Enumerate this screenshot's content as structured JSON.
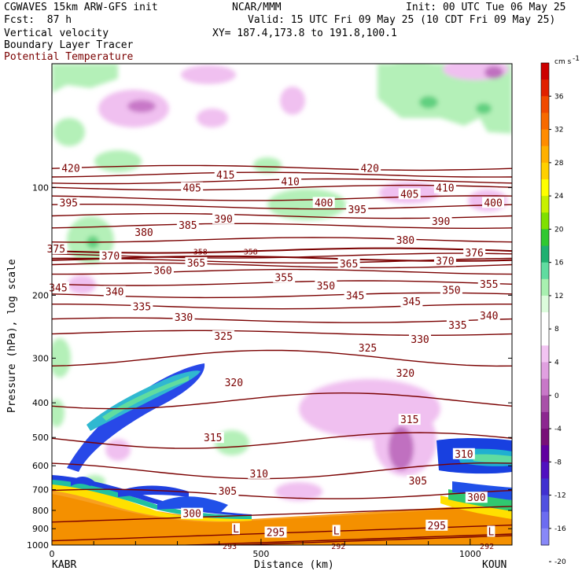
{
  "header": {
    "line1_left": "CGWAVES 15km ARW-GFS init",
    "line1_center": "NCAR/MMM",
    "line1_right": "Init: 00 UTC Tue 06 May 25",
    "line2_left": "Fcst:  87 h",
    "line2_right": "Valid: 15 UTC Fri 09 May 25 (10 CDT Fri 09 May 25)",
    "line3_left": "Vertical velocity",
    "line3_right": "XY= 187.4,173.8 to 191.8,100.1",
    "line4_left": "Boundary Layer Tracer",
    "line5_left": "Potential Temperature"
  },
  "axes": {
    "ylabel": "Pressure (hPa), log scale",
    "xlabel": "Distance (km)",
    "left_station": "KABR",
    "right_station": "KOUN"
  },
  "colorbar": {
    "unit": "cm s",
    "unit_exp": "-1",
    "labels": [
      "36",
      "32",
      "28",
      "24",
      "20",
      "16",
      "12",
      "8",
      "4",
      "0",
      "-4",
      "-8",
      "-12",
      "-16",
      "-20"
    ],
    "colors": [
      "#cc0000",
      "#e02000",
      "#f04a00",
      "#f76a00",
      "#ff8c00",
      "#ffb000",
      "#ffd000",
      "#ffff00",
      "#c8f000",
      "#80e000",
      "#30c830",
      "#20b070",
      "#60dca0",
      "#a8f0b0",
      "#dcfcdc",
      "#ffffff",
      "#ffffff",
      "#f2c4f2",
      "#e0a0e0",
      "#c878c8",
      "#a850a8",
      "#8c2890",
      "#781078",
      "#6000a0",
      "#5010c0",
      "#4030d0",
      "#5050e0",
      "#6c6cf0",
      "#8888f8"
    ]
  },
  "chart_data": {
    "type": "cross-section",
    "x_axis": {
      "label": "Distance (km)",
      "range": [
        0,
        1100
      ],
      "ticks": [
        0,
        500,
        1000
      ]
    },
    "y_axis": {
      "label": "Pressure (hPa), log scale",
      "scale": "log",
      "range": [
        1000,
        45
      ],
      "ticks": [
        1000,
        900,
        800,
        700,
        600,
        500,
        400,
        300,
        200,
        100
      ]
    },
    "theta_contours": [
      {
        "value": 293,
        "p": 980
      },
      {
        "value": 292,
        "p": 990
      },
      {
        "value": 295,
        "p": 925
      },
      {
        "value": 300,
        "p": 820
      },
      {
        "value": 305,
        "p": 720
      },
      {
        "value": 310,
        "p": 620
      },
      {
        "value": 315,
        "p": 510
      },
      {
        "value": 320,
        "p": 395
      },
      {
        "value": 325,
        "p": 300
      },
      {
        "value": 330,
        "p": 255
      },
      {
        "value": 335,
        "p": 235
      },
      {
        "value": 340,
        "p": 215
      },
      {
        "value": 345,
        "p": 200
      },
      {
        "value": 350,
        "p": 185
      },
      {
        "value": 355,
        "p": 172
      },
      {
        "value": 358,
        "p": 158
      },
      {
        "value": 360,
        "p": 165
      },
      {
        "value": 365,
        "p": 160
      },
      {
        "value": 370,
        "p": 155
      },
      {
        "value": 375,
        "p": 150
      },
      {
        "value": 380,
        "p": 140
      },
      {
        "value": 385,
        "p": 128
      },
      {
        "value": 390,
        "p": 120
      },
      {
        "value": 395,
        "p": 113
      },
      {
        "value": 400,
        "p": 107
      },
      {
        "value": 405,
        "p": 100
      },
      {
        "value": 410,
        "p": 96
      },
      {
        "value": 415,
        "p": 92
      },
      {
        "value": 420,
        "p": 88
      }
    ],
    "contour_labels": [
      {
        "t": "420",
        "x": 45,
        "p": 88
      },
      {
        "t": "420",
        "x": 760,
        "p": 88
      },
      {
        "t": "415",
        "x": 415,
        "p": 92
      },
      {
        "t": "410",
        "x": 570,
        "p": 96
      },
      {
        "t": "410",
        "x": 940,
        "p": 100
      },
      {
        "t": "405",
        "x": 335,
        "p": 100
      },
      {
        "t": "405",
        "x": 855,
        "p": 104
      },
      {
        "t": "400",
        "x": 650,
        "p": 110
      },
      {
        "t": "400",
        "x": 1055,
        "p": 110
      },
      {
        "t": "395",
        "x": 40,
        "p": 110
      },
      {
        "t": "395",
        "x": 730,
        "p": 115
      },
      {
        "t": "390",
        "x": 410,
        "p": 122
      },
      {
        "t": "390",
        "x": 930,
        "p": 124
      },
      {
        "t": "385",
        "x": 325,
        "p": 127
      },
      {
        "t": "380",
        "x": 220,
        "p": 133
      },
      {
        "t": "380",
        "x": 845,
        "p": 140
      },
      {
        "t": "376",
        "x": 1010,
        "p": 152
      },
      {
        "t": "375",
        "x": 10,
        "p": 148
      },
      {
        "t": "370",
        "x": 140,
        "p": 155
      },
      {
        "t": "370",
        "x": 940,
        "p": 160
      },
      {
        "t": "365",
        "x": 345,
        "p": 162
      },
      {
        "t": "365",
        "x": 710,
        "p": 163
      },
      {
        "t": "360",
        "x": 265,
        "p": 170
      },
      {
        "t": "358",
        "x": 355,
        "p": 150
      },
      {
        "t": "358",
        "x": 475,
        "p": 150
      },
      {
        "t": "355",
        "x": 555,
        "p": 178
      },
      {
        "t": "355",
        "x": 1045,
        "p": 186
      },
      {
        "t": "350",
        "x": 655,
        "p": 188
      },
      {
        "t": "350",
        "x": 955,
        "p": 193
      },
      {
        "t": "345",
        "x": 15,
        "p": 190
      },
      {
        "t": "345",
        "x": 725,
        "p": 200
      },
      {
        "t": "345",
        "x": 860,
        "p": 208
      },
      {
        "t": "340",
        "x": 150,
        "p": 195
      },
      {
        "t": "340",
        "x": 1045,
        "p": 228
      },
      {
        "t": "335",
        "x": 215,
        "p": 215
      },
      {
        "t": "335",
        "x": 970,
        "p": 242
      },
      {
        "t": "330",
        "x": 315,
        "p": 230
      },
      {
        "t": "330",
        "x": 880,
        "p": 265
      },
      {
        "t": "325",
        "x": 410,
        "p": 260
      },
      {
        "t": "325",
        "x": 755,
        "p": 280
      },
      {
        "t": "320",
        "x": 435,
        "p": 350
      },
      {
        "t": "320",
        "x": 845,
        "p": 330
      },
      {
        "t": "315",
        "x": 385,
        "p": 500
      },
      {
        "t": "315",
        "x": 855,
        "p": 445
      },
      {
        "t": "310",
        "x": 495,
        "p": 630
      },
      {
        "t": "310",
        "x": 985,
        "p": 555
      },
      {
        "t": "305",
        "x": 420,
        "p": 705
      },
      {
        "t": "305",
        "x": 875,
        "p": 660
      },
      {
        "t": "300",
        "x": 335,
        "p": 815
      },
      {
        "t": "300",
        "x": 1015,
        "p": 735
      },
      {
        "t": "295",
        "x": 535,
        "p": 920
      },
      {
        "t": "295",
        "x": 920,
        "p": 880
      },
      {
        "t": "293",
        "x": 425,
        "p": 1000
      },
      {
        "t": "292",
        "x": 685,
        "p": 1000
      },
      {
        "t": "292",
        "x": 1040,
        "p": 1000
      },
      {
        "t": "L",
        "x": 440,
        "p": 900
      },
      {
        "t": "L",
        "x": 680,
        "p": 910
      },
      {
        "t": "L",
        "x": 1050,
        "p": 915
      }
    ]
  }
}
